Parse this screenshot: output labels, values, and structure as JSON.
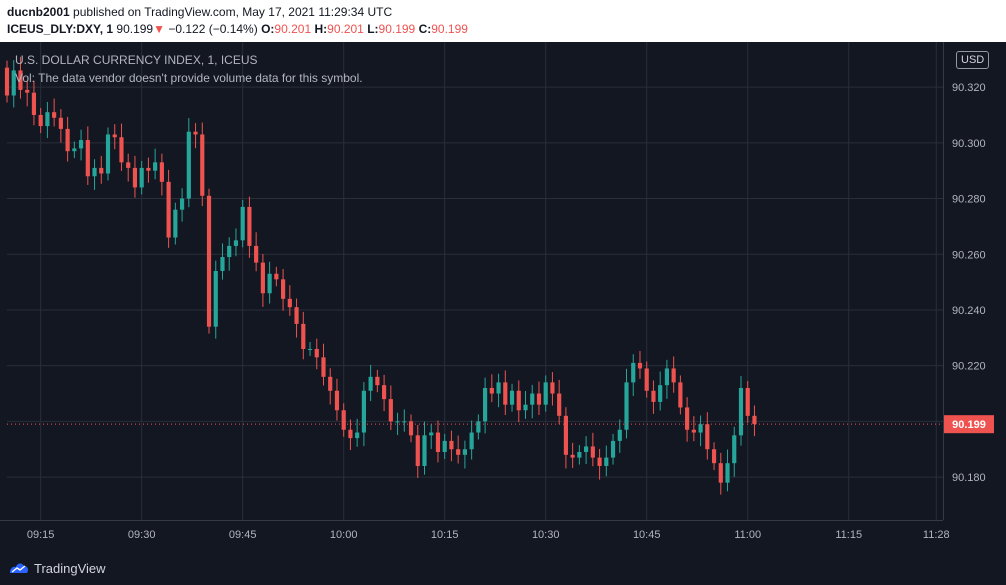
{
  "header": {
    "username": "ducnb2001",
    "published_text": "published on TradingView.com, May 17, 2021 11:29:34 UTC",
    "symbol": "ICEUS_DLY:DXY, 1",
    "last_price": "90.199",
    "change_arrow": "▼",
    "change_text": "−0.122 (−0.14%)",
    "o_label": "O:",
    "o_value": "90.201",
    "h_label": "H:",
    "h_value": "90.201",
    "l_label": "L:",
    "l_value": "90.199",
    "c_label": "C:",
    "c_value": "90.199"
  },
  "legend": {
    "title": "U.S. DOLLAR CURRENCY INDEX, 1, ICEUS",
    "volume_note": "Vol: The data vendor doesn't provide volume data for this symbol."
  },
  "price_axis": {
    "currency": "USD",
    "current_price_label": "90.199"
  },
  "footer": {
    "brand": "TradingView"
  },
  "colors": {
    "background": "#131722",
    "grid": "#2a2e39",
    "up": "#26a69a",
    "down": "#ef5350",
    "text": "#b2b5be"
  },
  "chart_data": {
    "type": "candlestick",
    "interval_minutes": 1,
    "y_ticks": [
      "90.180",
      "90.200",
      "90.220",
      "90.240",
      "90.260",
      "90.280",
      "90.300",
      "90.320"
    ],
    "y_tick_values": [
      90.18,
      90.2,
      90.22,
      90.24,
      90.26,
      90.28,
      90.3,
      90.32
    ],
    "x_ticks": [
      "09:15",
      "09:30",
      "09:45",
      "10:00",
      "10:15",
      "10:30",
      "10:45",
      "11:00",
      "11:15",
      "11:28"
    ],
    "x_tick_times": [
      "09:15",
      "09:30",
      "09:45",
      "10:00",
      "10:15",
      "10:30",
      "10:45",
      "11:00",
      "11:15",
      "11:28"
    ],
    "ylim": [
      90.1646,
      90.3362
    ],
    "xlim": [
      "09:10",
      "11:29"
    ],
    "current_price": 90.199,
    "closes": [
      90.317,
      90.326,
      90.319,
      90.318,
      90.31,
      90.306,
      90.311,
      90.309,
      90.305,
      90.297,
      90.298,
      90.301,
      90.288,
      90.291,
      90.289,
      90.303,
      90.302,
      90.293,
      90.291,
      90.284,
      90.291,
      90.29,
      90.293,
      90.286,
      90.266,
      90.276,
      90.28,
      90.304,
      90.303,
      90.281,
      90.234,
      90.254,
      90.259,
      90.263,
      90.265,
      90.277,
      90.263,
      90.257,
      90.246,
      90.253,
      90.251,
      90.244,
      90.241,
      90.235,
      90.226,
      90.226,
      90.223,
      90.216,
      90.211,
      90.204,
      90.197,
      90.194,
      90.196,
      90.211,
      90.216,
      90.213,
      90.208,
      90.2,
      90.2,
      90.2,
      90.195,
      90.184,
      90.195,
      90.196,
      90.189,
      90.193,
      90.19,
      90.188,
      90.19,
      90.196,
      90.2,
      90.212,
      90.21,
      90.214,
      90.206,
      90.211,
      90.204,
      90.206,
      90.21,
      90.206,
      90.214,
      90.21,
      90.202,
      90.188,
      90.187,
      90.189,
      90.191,
      90.187,
      90.184,
      90.187,
      90.193,
      90.197,
      90.214,
      90.221,
      90.219,
      90.211,
      90.207,
      90.213,
      90.219,
      90.214,
      90.205,
      90.197,
      90.196,
      90.199,
      90.19,
      90.185,
      90.178,
      90.185,
      90.195,
      90.212,
      90.202,
      90.199
    ]
  }
}
